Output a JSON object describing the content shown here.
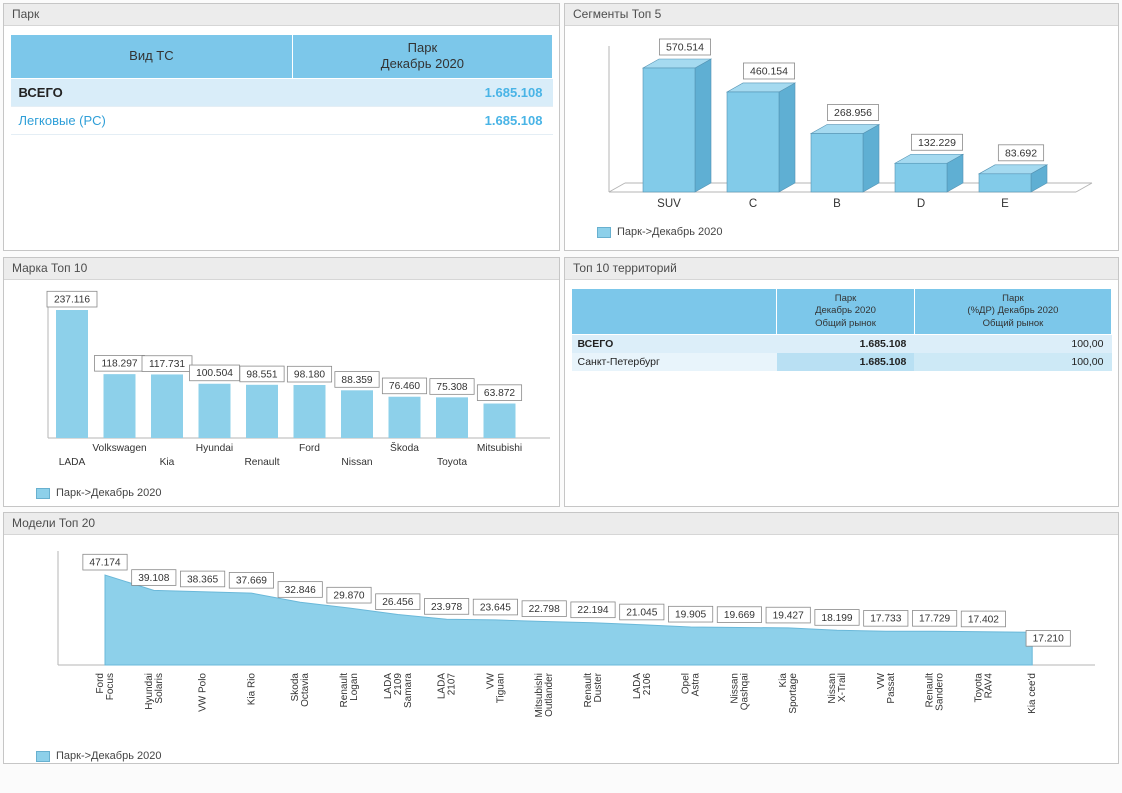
{
  "colors": {
    "series_fill": "#8DD0EA",
    "series_front": "#82CBE9",
    "series_side": "#5FAFD3",
    "series_top": "#A5DAF0",
    "series_stroke": "#5593B3",
    "axis": "#B5B5B5",
    "table_header_bg": "#7CC7EA",
    "accent_value_text": "#49B4E6",
    "row_highlight_bg": "#D9EDF9",
    "row_medium_bg": "#B9E0F3"
  },
  "panels": {
    "park": {
      "title": "Парк",
      "table": {
        "headers": [
          "Вид ТС",
          "Парк\nДекабрь 2020"
        ],
        "rows": [
          {
            "label": "ВСЕГО",
            "value": "1.685.108"
          },
          {
            "label": "Легковые (PC)",
            "value": "1.685.108"
          }
        ]
      }
    },
    "segments": {
      "title": "Сегменты Топ 5",
      "legend": "Парк->Декабрь 2020"
    },
    "brands": {
      "title": "Марка Топ 10",
      "legend": "Парк->Декабрь 2020"
    },
    "territories": {
      "title": "Топ 10 территорий",
      "table": {
        "headers": [
          "",
          "Парк\nДекабрь 2020\nОбщий рынок",
          "Парк\n(%ДР) Декабрь 2020\nОбщий рынок"
        ],
        "rows": [
          {
            "label": "ВСЕГО",
            "value": "1.685.108",
            "pct": "100,00"
          },
          {
            "label": "Санкт-Петербург",
            "value": "1.685.108",
            "pct": "100,00"
          }
        ]
      }
    },
    "models": {
      "title": "Модели Топ 20",
      "legend": "Парк->Декабрь 2020"
    }
  },
  "chart_data": [
    {
      "id": "segments",
      "type": "bar",
      "variant": "3d",
      "title": "Сегменты Топ 5",
      "categories": [
        "SUV",
        "C",
        "B",
        "D",
        "E"
      ],
      "values": [
        570514,
        460154,
        268956,
        132229,
        83692
      ],
      "labels": [
        "570.514",
        "460.154",
        "268.956",
        "132.229",
        "83.692"
      ],
      "legend": [
        "Парк->Декабрь 2020"
      ],
      "legend_position": "bottom-left",
      "ylim": [
        0,
        600000
      ],
      "grid": false
    },
    {
      "id": "brands",
      "type": "bar",
      "title": "Марка Топ 10",
      "categories": [
        "LADA",
        "Volkswagen",
        "Kia",
        "Hyundai",
        "Renault",
        "Ford",
        "Nissan",
        "Škoda",
        "Toyota",
        "Mitsubishi"
      ],
      "values": [
        237116,
        118297,
        117731,
        100504,
        98551,
        98180,
        88359,
        76460,
        75308,
        63872
      ],
      "labels": [
        "237.116",
        "118.297",
        "117.731",
        "100.504",
        "98.551",
        "98.180",
        "88.359",
        "76.460",
        "75.308",
        "63.872"
      ],
      "legend": [
        "Парк->Декабрь 2020"
      ],
      "legend_position": "bottom-left",
      "ylim": [
        0,
        250000
      ],
      "grid": false
    },
    {
      "id": "models",
      "type": "area",
      "title": "Модели Топ 20",
      "categories": [
        "Ford Focus",
        "Hyundai Solaris",
        "VW Polo",
        "Kia Rio",
        "Skoda Octavia",
        "Renault Logan",
        "LADA 2109 Samara",
        "LADA 2107",
        "VW Tiguan",
        "Mitsubishi Outlander",
        "Renault Duster",
        "LADA 2106",
        "Opel Astra",
        "Nissan Qashqai",
        "Kia Sportage",
        "Nissan X-Trail",
        "VW Passat",
        "Renault Sandero",
        "Toyota RAV4",
        "Kia cee'd"
      ],
      "categories_wrapped": [
        [
          "Ford",
          "Focus"
        ],
        [
          "Hyundai",
          "Solaris"
        ],
        [
          "VW Polo"
        ],
        [
          "Kia Rio"
        ],
        [
          "Skoda",
          "Octavia"
        ],
        [
          "Renault",
          "Logan"
        ],
        [
          "LADA",
          "2109",
          "Samara"
        ],
        [
          "LADA",
          "2107"
        ],
        [
          "VW",
          "Tiguan"
        ],
        [
          "Mitsubishi",
          "Outlander"
        ],
        [
          "Renault",
          "Duster"
        ],
        [
          "LADA",
          "2106"
        ],
        [
          "Opel",
          "Astra"
        ],
        [
          "Nissan",
          "Qashqai"
        ],
        [
          "Kia",
          "Sportage"
        ],
        [
          "Nissan",
          "X-Trail"
        ],
        [
          "VW",
          "Passat"
        ],
        [
          "Renault",
          "Sandero"
        ],
        [
          "Toyota",
          "RAV4"
        ],
        [
          "Kia cee'd"
        ]
      ],
      "values": [
        47174,
        39108,
        38365,
        37669,
        32846,
        29870,
        26456,
        23978,
        23645,
        22798,
        22194,
        21045,
        19905,
        19669,
        19427,
        18199,
        17733,
        17729,
        17402,
        17210
      ],
      "labels": [
        "47.174",
        "39.108",
        "38.365",
        "37.669",
        "32.846",
        "29.870",
        "26.456",
        "23.978",
        "23.645",
        "22.798",
        "22.194",
        "21.045",
        "19.905",
        "19.669",
        "19.427",
        "18.199",
        "17.733",
        "17.729",
        "17.402",
        "17.210"
      ],
      "legend": [
        "Парк->Декабрь 2020"
      ],
      "legend_position": "bottom-left",
      "ylim": [
        0,
        50000
      ],
      "grid": false
    }
  ]
}
